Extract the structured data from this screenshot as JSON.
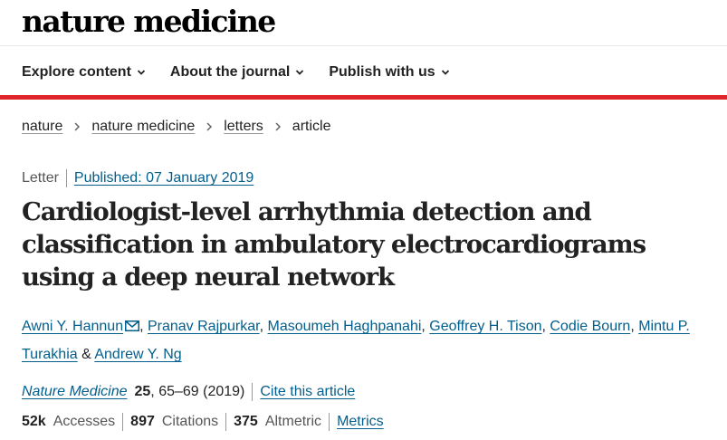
{
  "site": {
    "logo_text": "nature medicine"
  },
  "nav": {
    "items": [
      {
        "label": "Explore content"
      },
      {
        "label": "About the journal"
      },
      {
        "label": "Publish with us"
      }
    ]
  },
  "breadcrumb": {
    "items": [
      "nature",
      "nature medicine",
      "letters"
    ],
    "current": "article"
  },
  "article": {
    "type": "Letter",
    "published": "Published: 07 January 2019",
    "title": "Cardiologist-level arrhythmia detection and classification in ambulatory electrocardiograms using a deep neural network",
    "authors": [
      "Awni Y. Hannun",
      "Pranav Rajpurkar",
      "Masoumeh Haghpanahi",
      "Geoffrey H. Tison",
      "Codie Bourn",
      "Mintu P. Turakhia",
      "Andrew Y. Ng"
    ],
    "author_separator": ", ",
    "author_last_separator": " & ",
    "citation": {
      "journal": "Nature Medicine",
      "volume": "25",
      "pages": ", 65–69 (2019)",
      "cite_label": "Cite this article"
    }
  },
  "metrics": {
    "accesses_count": "52k",
    "accesses_label": "Accesses",
    "citations_count": "897",
    "citations_label": "Citations",
    "altmetric_count": "375",
    "altmetric_label": "Altmetric",
    "metrics_link": "Metrics"
  },
  "icons": {
    "nav_chevron": "chevron-down-icon",
    "breadcrumb_sep": "chevron-right-icon",
    "author_contact": "envelope-icon"
  },
  "colors": {
    "accent_red": "#e0252b",
    "link_blue": "#025e8d",
    "text": "#222222"
  }
}
